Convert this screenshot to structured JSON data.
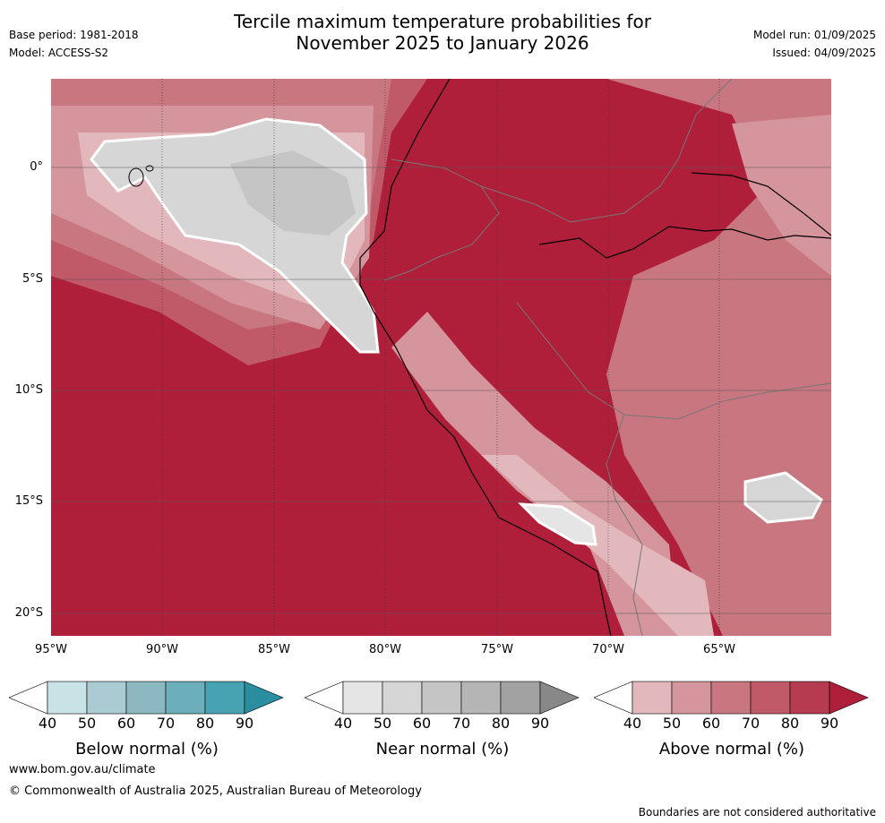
{
  "title_line1": "Tercile maximum temperature probabilities for",
  "title_line2": "November 2025 to January 2026",
  "meta_left": {
    "base_period": "Base period: 1981-2018",
    "model": "Model: ACCESS-S2"
  },
  "meta_right": {
    "model_run": "Model run: 01/09/2025",
    "issued": "Issued: 04/09/2025"
  },
  "axes": {
    "lat_labels": [
      "0°",
      "5°S",
      "10°S",
      "15°S",
      "20°S"
    ],
    "lon_labels": [
      "95°W",
      "90°W",
      "85°W",
      "80°W",
      "75°W",
      "70°W",
      "65°W"
    ]
  },
  "legends": [
    {
      "title": "Below normal (%)",
      "ticks": [
        "40",
        "50",
        "60",
        "70",
        "80",
        "90"
      ],
      "colors": [
        "#ffffff",
        "#c9e2e6",
        "#a9cbd1",
        "#8cb8c1",
        "#6caeb9",
        "#47a2b1",
        "#2a8ea0"
      ]
    },
    {
      "title": "Near normal (%)",
      "ticks": [
        "40",
        "50",
        "60",
        "70",
        "80",
        "90"
      ],
      "colors": [
        "#ffffff",
        "#e5e5e5",
        "#d6d6d6",
        "#c5c5c5",
        "#b5b5b5",
        "#a2a2a2",
        "#888888"
      ]
    },
    {
      "title": "Above normal (%)",
      "ticks": [
        "40",
        "50",
        "60",
        "70",
        "80",
        "90"
      ],
      "colors": [
        "#ffffff",
        "#e2b8bd",
        "#d5959c",
        "#c87680",
        "#c05968",
        "#b63b50",
        "#b01f3a"
      ]
    }
  ],
  "footer": {
    "url": "www.bom.gov.au/climate",
    "copyright": "© Commonwealth of Australia 2025, Australian Bureau of Meteorology",
    "note": "Boundaries are not considered authoritative"
  }
}
